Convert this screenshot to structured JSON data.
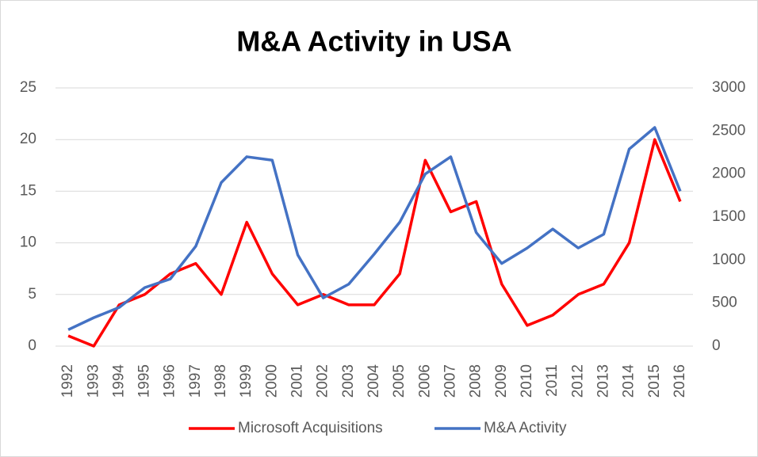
{
  "chart_data": {
    "type": "line",
    "title": "M&A Activity in USA",
    "categories": [
      "1992",
      "1993",
      "1994",
      "1995",
      "1996",
      "1997",
      "1998",
      "1999",
      "2000",
      "2001",
      "2002",
      "2003",
      "2004",
      "2005",
      "2006",
      "2007",
      "2008",
      "2009",
      "2010",
      "2011",
      "2012",
      "2013",
      "2014",
      "2015",
      "2016"
    ],
    "series": [
      {
        "name": "Microsoft Acquisitions",
        "color": "#ff0000",
        "values": [
          1,
          0,
          4,
          5,
          7,
          8,
          5,
          12,
          7,
          4,
          5,
          4,
          4,
          7,
          18,
          13,
          14,
          6,
          2,
          3,
          5,
          6,
          10,
          20,
          14
        ]
      },
      {
        "name": "M&A Activity",
        "color": "#4472c4",
        "axis": "y2",
        "values": [
          190,
          330,
          450,
          680,
          780,
          1160,
          1900,
          2200,
          2160,
          1060,
          560,
          720,
          1070,
          1440,
          2000,
          2200,
          1320,
          960,
          1140,
          1360,
          1140,
          1300,
          2290,
          2540,
          1800
        ]
      }
    ],
    "ylim": [
      0,
      25
    ],
    "yticks": [
      0,
      5,
      10,
      15,
      20,
      25
    ],
    "y2lim": [
      0,
      3000
    ],
    "y2ticks": [
      0,
      500,
      1000,
      1500,
      2000,
      2500,
      3000
    ],
    "grid": true,
    "legend": "bottom"
  }
}
